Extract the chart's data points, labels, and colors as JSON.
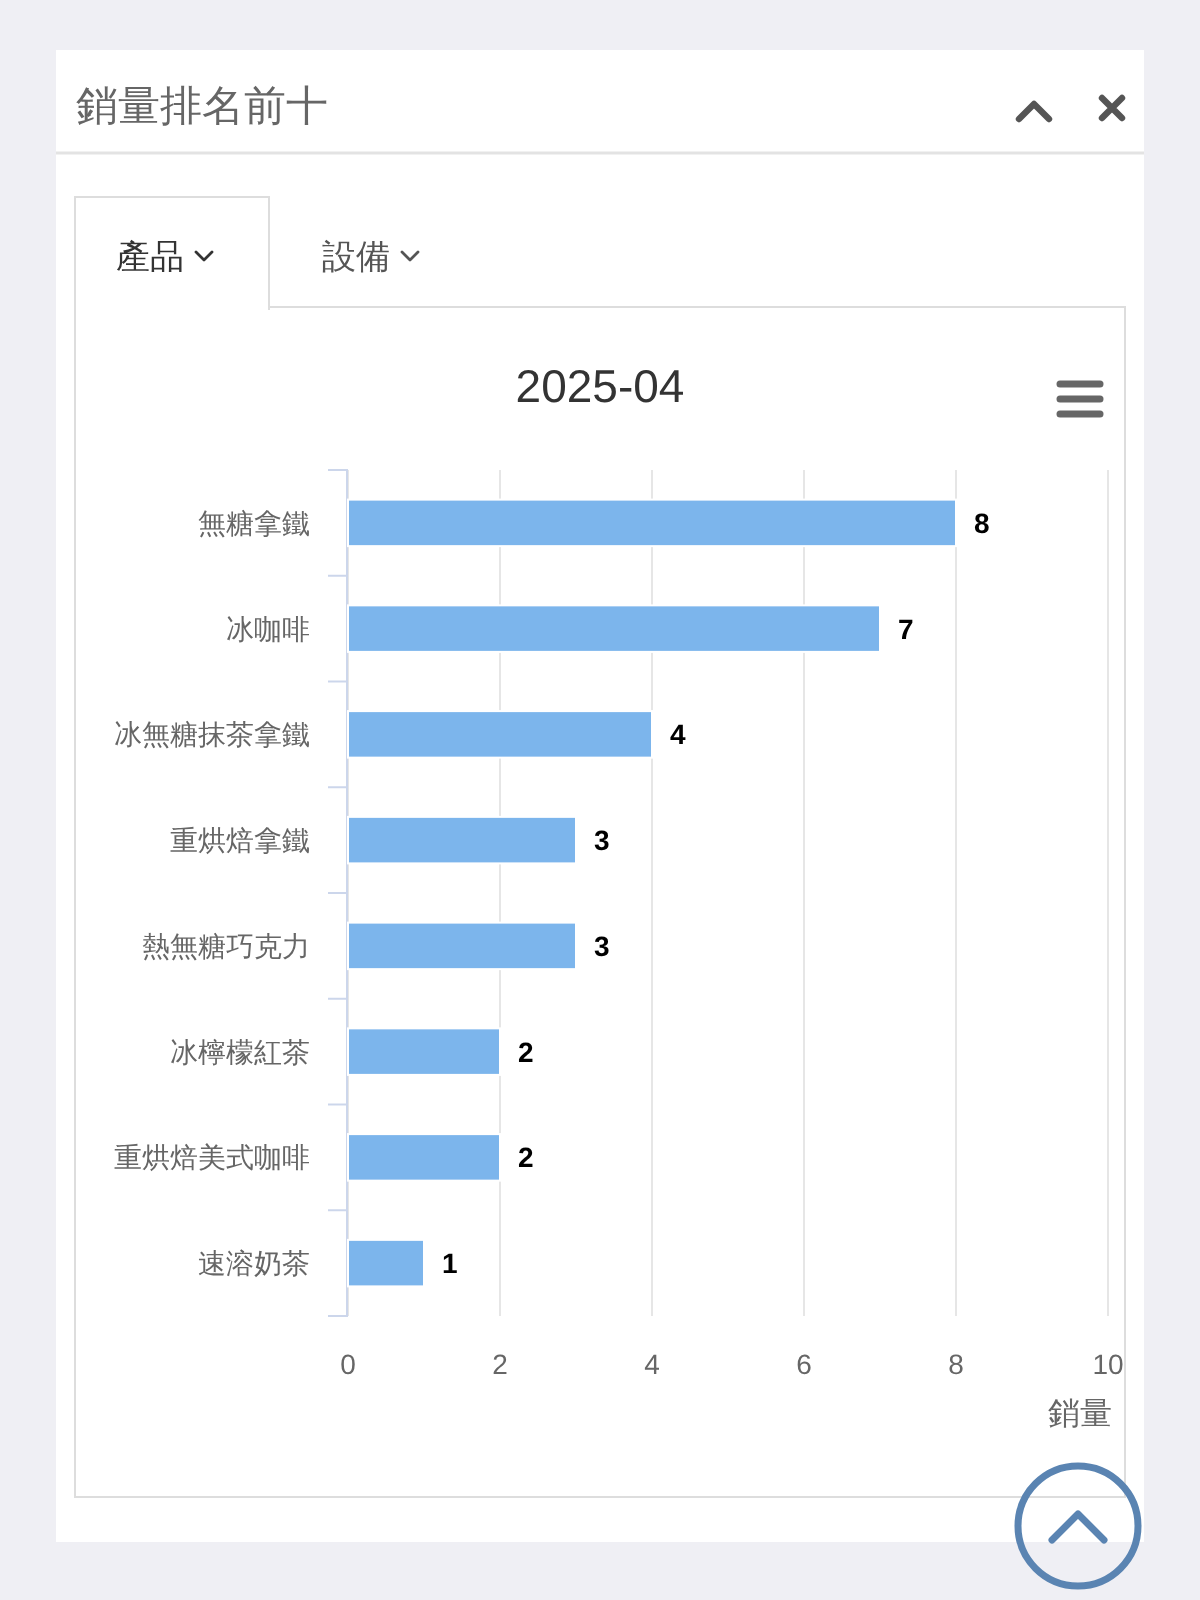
{
  "chart_data": {
    "type": "bar",
    "orientation": "horizontal",
    "title": "銷量排名前十",
    "subtitle": "2025-04",
    "annotations": [
      "產品",
      "設備"
    ],
    "categories": [
      "無糖拿鐵",
      "冰咖啡",
      "冰無糖抹茶拿鐵",
      "重烘焙拿鐵",
      "熱無糖巧克力",
      "冰檸檬紅茶",
      "重烘焙美式咖啡",
      "速溶奶茶"
    ],
    "values": [
      8,
      7,
      4,
      3,
      3,
      2,
      2,
      1
    ],
    "color": "#7cb5ec",
    "xlim": [
      0,
      10
    ],
    "xticks": [
      0,
      2,
      4,
      6,
      8,
      10
    ],
    "xlabel": "銷量",
    "grid": "x",
    "data_labels": true
  }
}
